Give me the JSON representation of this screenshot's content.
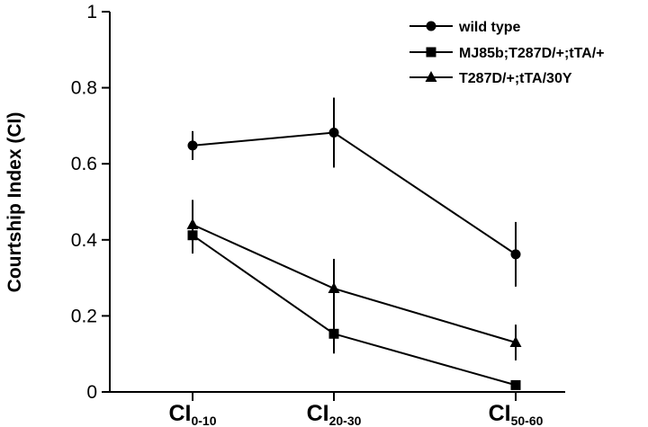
{
  "chart_data": {
    "type": "line",
    "ylabel": "Courtship Index (CI)",
    "ylim": [
      0,
      1
    ],
    "yticks": [
      {
        "value": 0,
        "label": "0"
      },
      {
        "value": 0.2,
        "label": "0.2"
      },
      {
        "value": 0.4,
        "label": "0.4"
      },
      {
        "value": 0.6,
        "label": "0.6"
      },
      {
        "value": 0.8,
        "label": "0.8"
      },
      {
        "value": 1,
        "label": "1"
      }
    ],
    "categories": [
      {
        "main": "CI",
        "sub": "0-10"
      },
      {
        "main": "CI",
        "sub": "20-30"
      },
      {
        "main": "CI",
        "sub": "50-60"
      }
    ],
    "legend_position": "top-right",
    "grid": false,
    "series": [
      {
        "name": "wild type",
        "marker": "circle",
        "values": [
          0.648,
          0.682,
          0.362
        ],
        "errors": [
          0.038,
          0.092,
          0.085
        ]
      },
      {
        "name": "MJ85b;T287D/+;tTA/+",
        "marker": "square",
        "values": [
          0.412,
          0.153,
          0.018
        ],
        "errors": [
          0.048,
          0.052,
          0.0
        ]
      },
      {
        "name": "T287D/+;tTA/30Y",
        "marker": "triangle",
        "values": [
          0.44,
          0.272,
          0.13
        ],
        "errors": [
          0.065,
          0.078,
          0.047
        ]
      }
    ]
  }
}
